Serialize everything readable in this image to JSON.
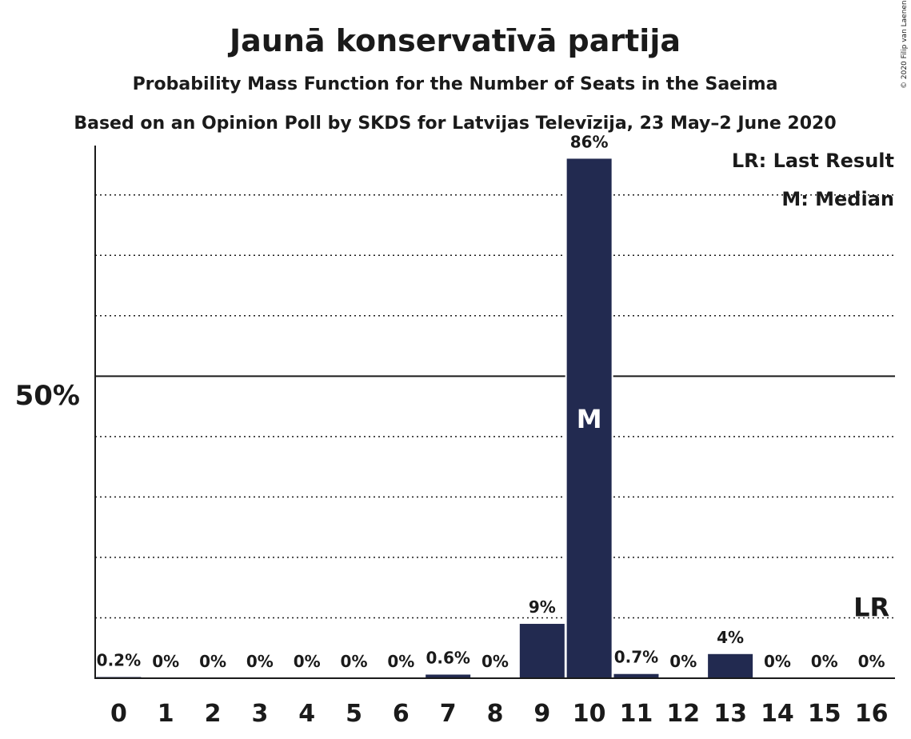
{
  "chart_data": {
    "type": "bar",
    "title": "Jaunā konservatīvā partija",
    "subtitle": "Probability Mass Function for the Number of Seats in the Saeima",
    "subtitle2": "Based on an Opinion Poll by SKDS for Latvijas Televīzija, 23 May–2 June 2020",
    "copyright": "© 2020 Filip van Laenen",
    "categories": [
      "0",
      "1",
      "2",
      "3",
      "4",
      "5",
      "6",
      "7",
      "8",
      "9",
      "10",
      "11",
      "12",
      "13",
      "14",
      "15",
      "16"
    ],
    "values": [
      0.2,
      0,
      0,
      0,
      0,
      0,
      0,
      0.6,
      0,
      9,
      86,
      0.7,
      0,
      4,
      0,
      0,
      0
    ],
    "value_labels": [
      "0.2%",
      "0%",
      "0%",
      "0%",
      "0%",
      "0%",
      "0%",
      "0.6%",
      "0%",
      "9%",
      "86%",
      "0.7%",
      "0%",
      "4%",
      "0%",
      "0%",
      "0%"
    ],
    "ylim": [
      0,
      94
    ],
    "ytick_label": "50%",
    "ytick_value": 50,
    "gridlines": [
      10,
      20,
      30,
      40,
      60,
      70,
      80
    ],
    "median_seat": "10",
    "median_marker": "M",
    "last_result_seat": "16",
    "last_result_marker": "LR",
    "legend": [
      "LR: Last Result",
      "M: Median"
    ],
    "legend_placement": "top-right",
    "bar_color": "#222a50"
  }
}
